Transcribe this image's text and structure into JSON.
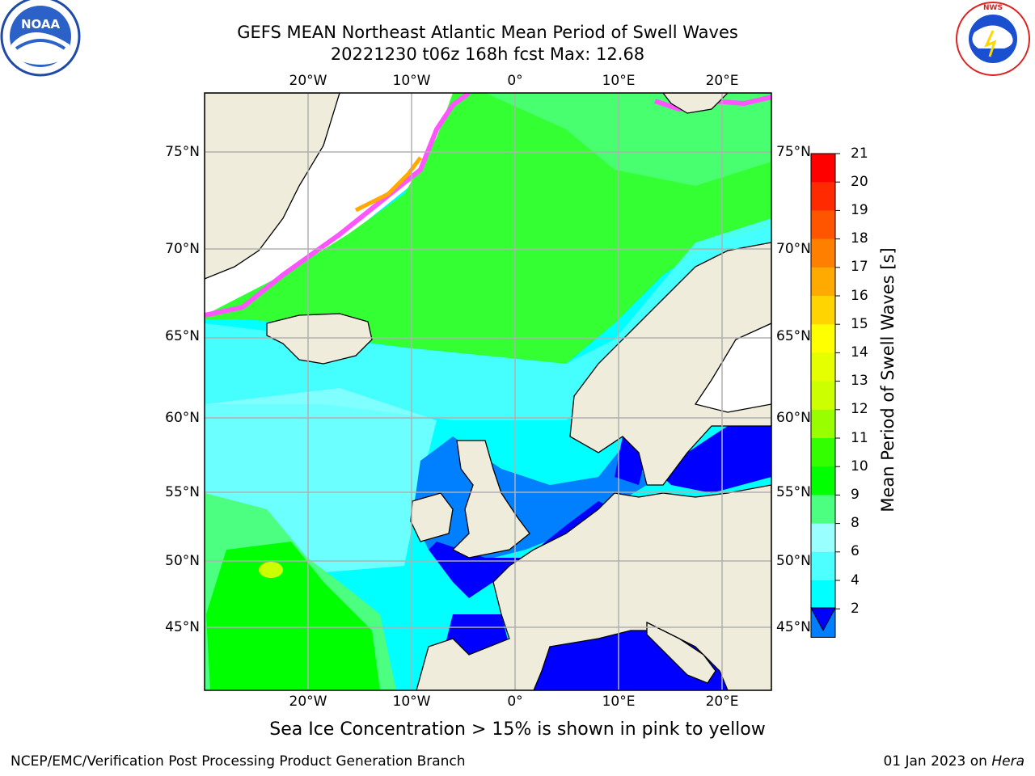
{
  "title": {
    "line1": "GEFS MEAN Northeast Atlantic Mean Period of Swell Waves",
    "line2": "20221230 t06z 168h fcst   Max: 12.68"
  },
  "lon_labels": [
    "20°W",
    "10°W",
    "0°",
    "10°E",
    "20°E"
  ],
  "lat_labels": [
    "75°N",
    "70°N",
    "65°N",
    "60°N",
    "55°N",
    "50°N",
    "45°N"
  ],
  "colorbar": {
    "title": "Mean Period of Swell Waves [s]",
    "ticks": [
      "21",
      "20",
      "19",
      "18",
      "17",
      "16",
      "15",
      "14",
      "13",
      "12",
      "11",
      "10",
      "9",
      "8",
      "6",
      "4",
      "2"
    ],
    "colors": [
      "#ff0000",
      "#ff2a00",
      "#ff5500",
      "#ff8000",
      "#ffaa00",
      "#ffd400",
      "#ffff00",
      "#e6ff00",
      "#ccff00",
      "#99ff00",
      "#33ff00",
      "#00ff00",
      "#4dff80",
      "#99ffff",
      "#4dffff",
      "#00ffff",
      "#0080ff"
    ],
    "extend_color": "#0000ff"
  },
  "legend": {
    "left_logo": "NOAA",
    "right_logo": "NATIONAL WEATHER SERVICE"
  },
  "note": "Sea Ice Concentration > 15% is shown in pink to yellow",
  "footer": {
    "left": "NCEP/EMC/Verification Post Processing Product Generation Branch",
    "right_date": "01 Jan 2023 on ",
    "right_machine": "Hera"
  }
}
